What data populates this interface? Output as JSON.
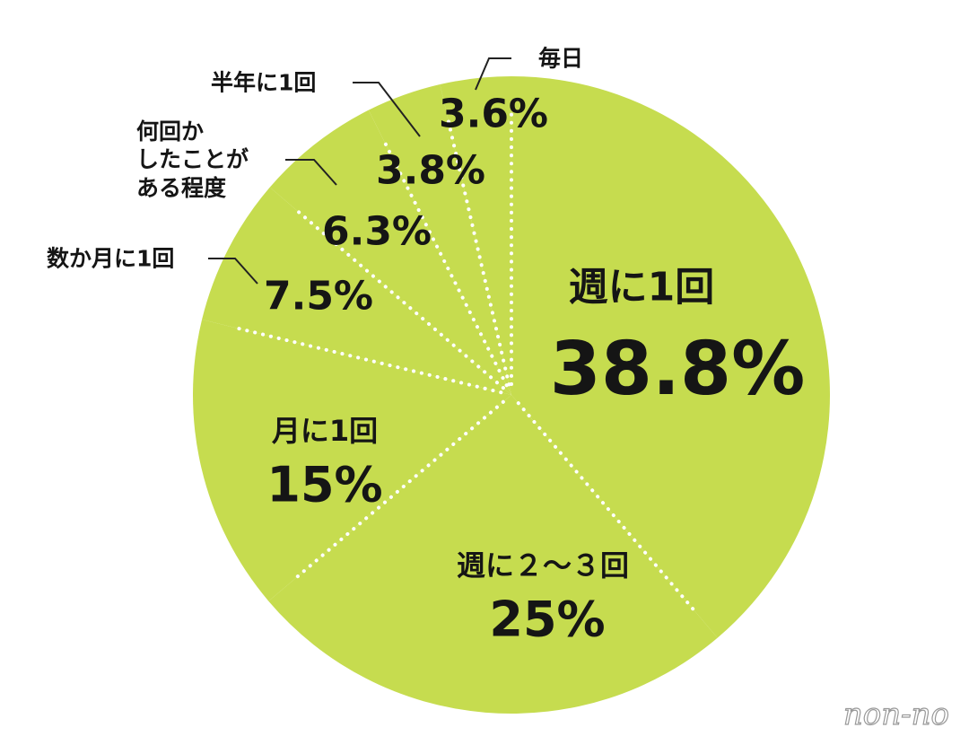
{
  "chart_data": {
    "type": "pie",
    "categories": [
      "週に1回",
      "週に２〜３回",
      "月に1回",
      "数か月に1回",
      "何回か\nしたことが\nある程度",
      "半年に1回",
      "毎日"
    ],
    "values": [
      38.8,
      25,
      15,
      7.5,
      6.3,
      3.8,
      3.6
    ],
    "value_labels": [
      "38.8%",
      "25%",
      "15%",
      "7.5%",
      "6.3%",
      "3.8%",
      "3.6%"
    ],
    "color": "#c6dc4f"
  },
  "watermark": "non-no"
}
